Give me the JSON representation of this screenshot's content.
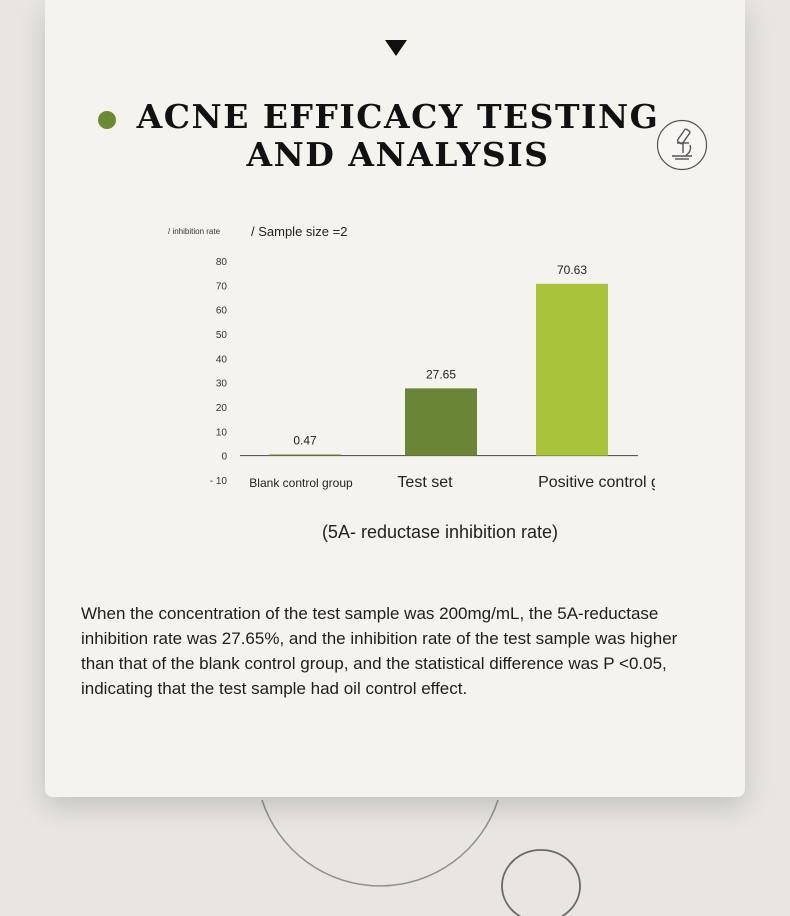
{
  "section": {
    "title_line1": "ACNE EFFICACY TESTING",
    "title_line2": "AND ANALYSIS"
  },
  "icons": {
    "down_arrow": "down-triangle-icon",
    "title_bullet": "bullet-dot-icon",
    "badge": "microscope-icon"
  },
  "colors": {
    "accent_green": "#6c8a33",
    "bar_light_green": "#a9c33a",
    "bar_dark_green": "#6b8536"
  },
  "chart_data": {
    "type": "bar",
    "ylabel": "/ inhibition rate",
    "subtitle": "/ Sample size =2",
    "categories": [
      "Blank control group",
      "Test set",
      "Positive control group"
    ],
    "values": [
      0.47,
      27.65,
      70.63
    ],
    "value_labels": [
      "0.47",
      "27.65",
      "70.63"
    ],
    "bar_colors": [
      "#6b8536",
      "#6b8536",
      "#a9c33a"
    ],
    "yticks": [
      "80",
      "70",
      "60",
      "50",
      "40",
      "30",
      "20",
      "10",
      "0",
      "- 10"
    ],
    "ylim": [
      -10,
      80
    ],
    "xlabel": "(5A- reductase inhibition rate)",
    "grid": false
  },
  "description": "When the concentration of the test sample was 200mg/mL, the 5A-reductase inhibition rate was 27.65%, and the inhibition rate of the test sample was higher than that of the blank control group, and the statistical difference was P <0.05, indicating that the test sample had oil control effect."
}
